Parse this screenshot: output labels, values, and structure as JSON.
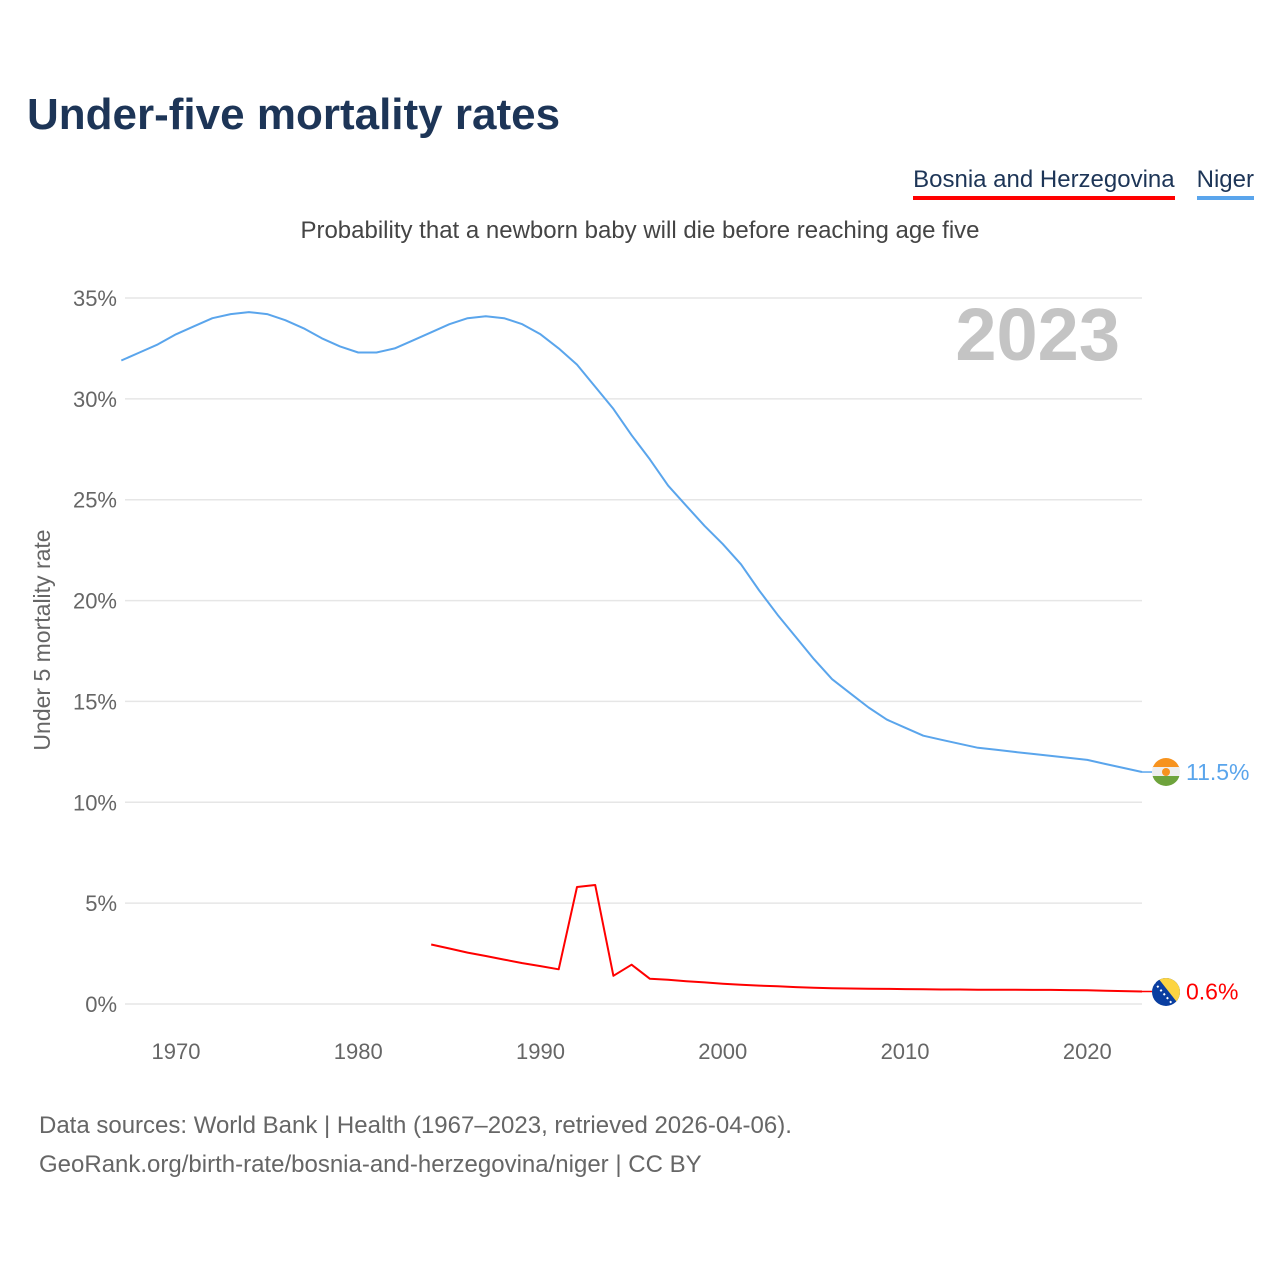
{
  "title": "Under-five mortality rates",
  "subtitle": "Probability that a newborn baby will die before reaching age five",
  "legend": [
    {
      "label": "Bosnia and Herzegovina",
      "color": "#ff0000"
    },
    {
      "label": "Niger",
      "color": "#5aa5ec"
    }
  ],
  "footer": {
    "line1": "Data sources: World Bank | Health (1967–2023, retrieved 2026-04-06).",
    "line2": "GeoRank.org/birth-rate/bosnia-and-herzegovina/niger | CC BY"
  },
  "chart_data": {
    "type": "line",
    "title": "Under-five mortality rates",
    "ylabel": "Under 5 mortality rate",
    "xlabel": "",
    "year_label": "2023",
    "xlim": [
      1967,
      2023
    ],
    "ylim": [
      0,
      35
    ],
    "xticks": [
      1970,
      1980,
      1990,
      2000,
      2010,
      2020
    ],
    "yticks": [
      0,
      5,
      10,
      15,
      20,
      25,
      30,
      35
    ],
    "ytick_labels": [
      "0%",
      "5%",
      "10%",
      "15%",
      "20%",
      "25%",
      "30%",
      "35%"
    ],
    "grid": true,
    "legend_position": "top-right",
    "series": [
      {
        "name": "Niger",
        "color": "#5aa5ec",
        "end_label": "11.5%",
        "x": [
          1967,
          1968,
          1969,
          1970,
          1971,
          1972,
          1973,
          1974,
          1975,
          1976,
          1977,
          1978,
          1979,
          1980,
          1981,
          1982,
          1983,
          1984,
          1985,
          1986,
          1987,
          1988,
          1989,
          1990,
          1991,
          1992,
          1993,
          1994,
          1995,
          1996,
          1997,
          1998,
          1999,
          2000,
          2001,
          2002,
          2003,
          2004,
          2005,
          2006,
          2007,
          2008,
          2009,
          2010,
          2011,
          2012,
          2013,
          2014,
          2015,
          2016,
          2017,
          2018,
          2019,
          2020,
          2021,
          2022,
          2023
        ],
        "values": [
          31.9,
          32.3,
          32.7,
          33.2,
          33.6,
          34.0,
          34.2,
          34.3,
          34.2,
          33.9,
          33.5,
          33.0,
          32.6,
          32.3,
          32.3,
          32.5,
          32.9,
          33.3,
          33.7,
          34.0,
          34.1,
          34.0,
          33.7,
          33.2,
          32.5,
          31.7,
          30.6,
          29.5,
          28.2,
          27.0,
          25.7,
          24.7,
          23.7,
          22.8,
          21.8,
          20.5,
          19.3,
          18.2,
          17.1,
          16.1,
          15.4,
          14.7,
          14.1,
          13.7,
          13.3,
          13.1,
          12.9,
          12.7,
          12.6,
          12.5,
          12.4,
          12.3,
          12.2,
          12.1,
          11.9,
          11.7,
          11.5
        ]
      },
      {
        "name": "Bosnia and Herzegovina",
        "color": "#ff0000",
        "end_label": "0.6%",
        "x": [
          1984,
          1985,
          1986,
          1987,
          1988,
          1989,
          1990,
          1991,
          1992,
          1993,
          1994,
          1995,
          1996,
          1997,
          1998,
          1999,
          2000,
          2001,
          2002,
          2003,
          2004,
          2005,
          2006,
          2007,
          2008,
          2009,
          2010,
          2011,
          2012,
          2013,
          2014,
          2015,
          2016,
          2017,
          2018,
          2019,
          2020,
          2021,
          2022,
          2023
        ],
        "values": [
          2.95,
          2.75,
          2.55,
          2.38,
          2.2,
          2.03,
          1.88,
          1.72,
          5.8,
          5.9,
          1.4,
          1.95,
          1.25,
          1.2,
          1.13,
          1.07,
          1.0,
          0.95,
          0.91,
          0.88,
          0.84,
          0.81,
          0.78,
          0.77,
          0.76,
          0.75,
          0.74,
          0.73,
          0.72,
          0.72,
          0.71,
          0.71,
          0.71,
          0.7,
          0.7,
          0.69,
          0.68,
          0.66,
          0.64,
          0.62
        ]
      }
    ]
  }
}
